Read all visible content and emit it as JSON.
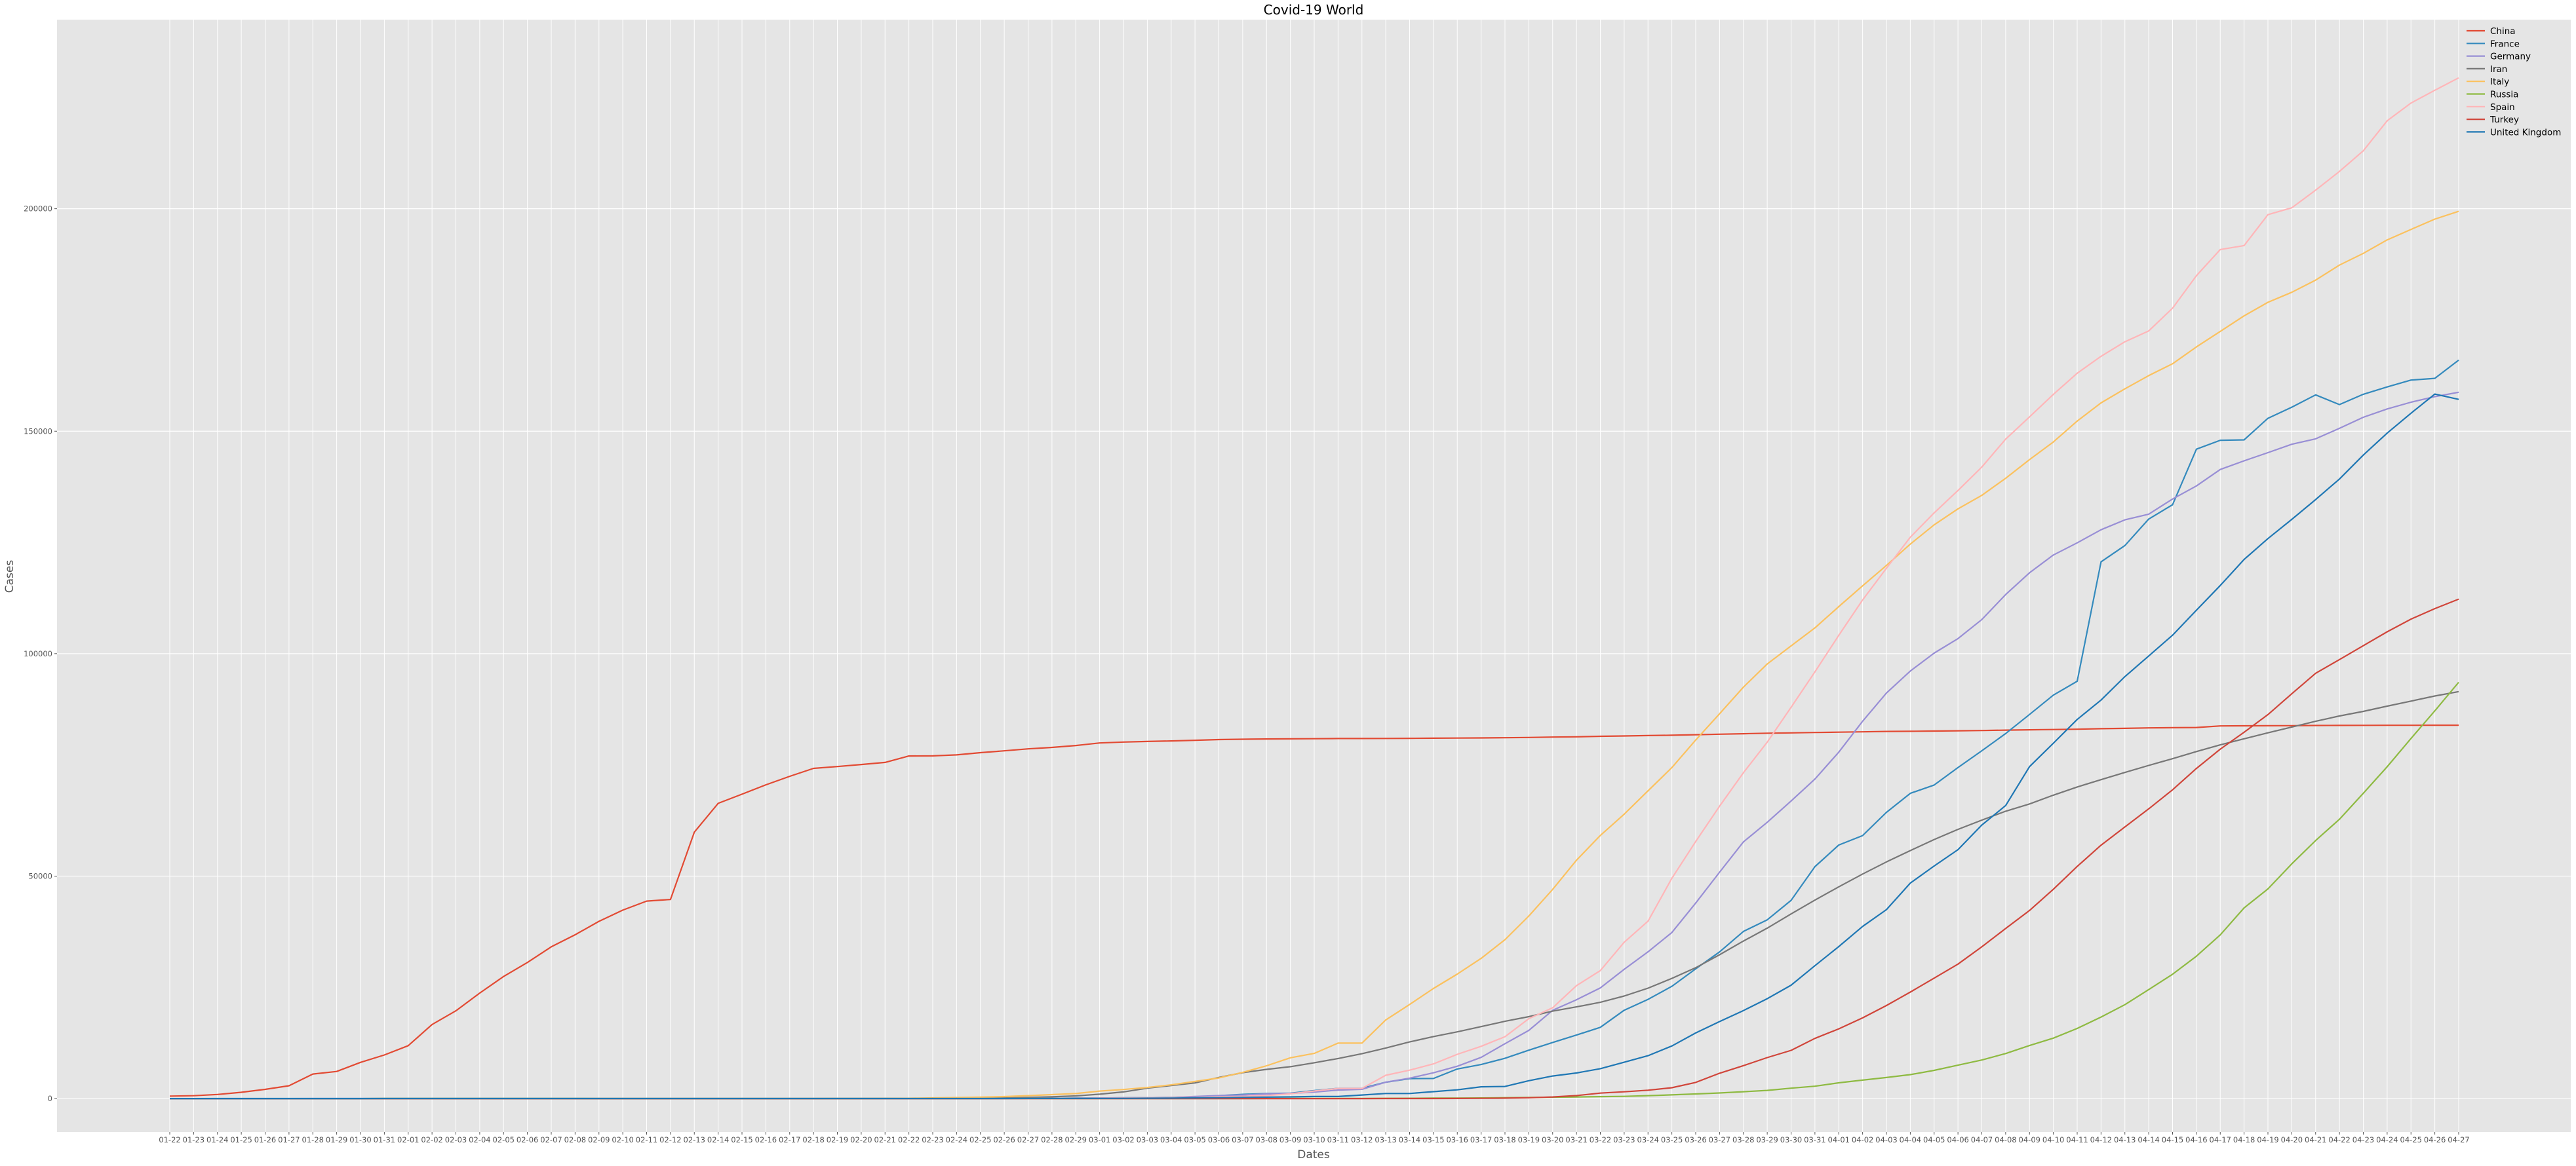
{
  "chart_data": {
    "type": "line",
    "title": "Covid-19 World",
    "xlabel": "Dates",
    "ylabel": "Cases",
    "ylim": [
      -7500,
      242500
    ],
    "yticks": [
      0,
      50000,
      100000,
      150000,
      200000
    ],
    "grid": true,
    "legend_position": "top-right",
    "x": [
      "01-22",
      "01-23",
      "01-24",
      "01-25",
      "01-26",
      "01-27",
      "01-28",
      "01-29",
      "01-30",
      "01-31",
      "02-01",
      "02-02",
      "02-03",
      "02-04",
      "02-05",
      "02-06",
      "02-07",
      "02-08",
      "02-09",
      "02-10",
      "02-11",
      "02-12",
      "02-13",
      "02-14",
      "02-15",
      "02-16",
      "02-17",
      "02-18",
      "02-19",
      "02-20",
      "02-21",
      "02-22",
      "02-23",
      "02-24",
      "02-25",
      "02-26",
      "02-27",
      "02-28",
      "02-29",
      "03-01",
      "03-02",
      "03-03",
      "03-04",
      "03-05",
      "03-06",
      "03-07",
      "03-08",
      "03-09",
      "03-10",
      "03-11",
      "03-12",
      "03-13",
      "03-14",
      "03-15",
      "03-16",
      "03-17",
      "03-18",
      "03-19",
      "03-20",
      "03-21",
      "03-22",
      "03-23",
      "03-24",
      "03-25",
      "03-26",
      "03-27",
      "03-28",
      "03-29",
      "03-30",
      "03-31",
      "04-01",
      "04-02",
      "04-03",
      "04-04",
      "04-05",
      "04-06",
      "04-07",
      "04-08",
      "04-09",
      "04-10",
      "04-11",
      "04-12",
      "04-13",
      "04-14",
      "04-15",
      "04-16",
      "04-17",
      "04-18",
      "04-19",
      "04-20",
      "04-21",
      "04-22",
      "04-23",
      "04-24",
      "04-25",
      "04-26",
      "04-27"
    ],
    "series": [
      {
        "name": "China",
        "color": "#E24A33",
        "values": [
          548,
          643,
          920,
          1406,
          2075,
          2877,
          5509,
          6087,
          8141,
          9802,
          11891,
          16630,
          19716,
          23707,
          27440,
          30587,
          34110,
          36814,
          39829,
          42354,
          44386,
          44759,
          59895,
          66358,
          68413,
          70513,
          72434,
          74211,
          74619,
          75077,
          75550,
          77001,
          77022,
          77241,
          77754,
          78166,
          78600,
          78928,
          79356,
          79932,
          80136,
          80261,
          80386,
          80537,
          80690,
          80770,
          80823,
          80860,
          80887,
          80921,
          80932,
          80945,
          80977,
          81003,
          81033,
          81058,
          81102,
          81156,
          81250,
          81305,
          81435,
          81498,
          81591,
          81661,
          81782,
          81897,
          81999,
          82122,
          82198,
          82279,
          82361,
          82432,
          82511,
          82543,
          82602,
          82665,
          82718,
          82809,
          82883,
          82941,
          83014,
          83134,
          83213,
          83306,
          83356,
          83403,
          83760,
          83787,
          83805,
          83817,
          83853,
          83868,
          83884,
          83899,
          83909,
          83912,
          83918
        ]
      },
      {
        "name": "France",
        "color": "#348ABD",
        "values": [
          0,
          0,
          2,
          3,
          3,
          3,
          4,
          5,
          5,
          5,
          6,
          6,
          6,
          6,
          6,
          6,
          6,
          11,
          11,
          11,
          11,
          11,
          11,
          11,
          12,
          12,
          12,
          12,
          12,
          12,
          12,
          12,
          12,
          12,
          14,
          18,
          38,
          57,
          100,
          130,
          191,
          204,
          288,
          380,
          656,
          957,
          1134,
          1217,
          1792,
          2289,
          2289,
          3672,
          4480,
          4513,
          6650,
          7652,
          9043,
          10871,
          12612,
          14282,
          16018,
          19856,
          22304,
          25233,
          29155,
          32964,
          37575,
          40174,
          44550,
          52128,
          56989,
          59105,
          64338,
          68605,
          70478,
          74390,
          78167,
          82048,
          86334,
          90676,
          93790,
          120633,
          124298,
          130253,
          133470,
          145960,
          147969,
          148044,
          152894,
          155393,
          158168,
          155980,
          158303,
          159952,
          161488,
          161883,
          165963
        ]
      },
      {
        "name": "Germany",
        "color": "#988ED5",
        "values": [
          0,
          0,
          0,
          0,
          0,
          1,
          4,
          4,
          4,
          5,
          8,
          10,
          12,
          12,
          12,
          12,
          13,
          13,
          14,
          14,
          16,
          16,
          16,
          16,
          16,
          16,
          16,
          16,
          16,
          16,
          16,
          16,
          16,
          16,
          17,
          27,
          46,
          48,
          79,
          130,
          159,
          196,
          262,
          482,
          670,
          799,
          1040,
          1176,
          1457,
          1908,
          2078,
          3675,
          4585,
          5795,
          7272,
          9257,
          12327,
          15320,
          19848,
          22213,
          24873,
          29056,
          32986,
          37323,
          43938,
          50871,
          57695,
          62095,
          66885,
          71808,
          77872,
          84794,
          91159,
          96092,
          100123,
          103374,
          107663,
          113296,
          118181,
          122171,
          124908,
          127854,
          130072,
          131359,
          134753,
          137698,
          141397,
          143342,
          145184,
          147065,
          148291,
          150648,
          153129,
          154999,
          156513,
          157770,
          158758
        ]
      },
      {
        "name": "Iran",
        "color": "#777777",
        "values": [
          0,
          0,
          0,
          0,
          0,
          0,
          0,
          0,
          0,
          0,
          0,
          0,
          0,
          0,
          0,
          0,
          0,
          0,
          0,
          0,
          0,
          0,
          0,
          0,
          0,
          0,
          0,
          0,
          2,
          5,
          18,
          28,
          43,
          61,
          95,
          139,
          245,
          388,
          593,
          978,
          1501,
          2336,
          2922,
          3513,
          4747,
          5823,
          6566,
          7161,
          8042,
          9000,
          10075,
          11364,
          12729,
          13938,
          14991,
          16169,
          17361,
          18407,
          19644,
          20610,
          21638,
          23049,
          24811,
          27017,
          29406,
          32332,
          35408,
          38309,
          41495,
          44605,
          47593,
          50468,
          53183,
          55743,
          58226,
          60500,
          62589,
          64586,
          66220,
          68192,
          70029,
          71686,
          73303,
          74877,
          76389,
          77995,
          79494,
          80868,
          82211,
          83505,
          84802,
          85996,
          87026,
          88194,
          89328,
          90481,
          91472
        ]
      },
      {
        "name": "Italy",
        "color": "#FBC15E",
        "values": [
          0,
          0,
          0,
          0,
          0,
          0,
          0,
          0,
          0,
          2,
          2,
          2,
          2,
          2,
          2,
          2,
          3,
          3,
          3,
          3,
          3,
          3,
          3,
          3,
          3,
          3,
          3,
          3,
          3,
          3,
          20,
          62,
          155,
          229,
          322,
          453,
          655,
          888,
          1128,
          1694,
          2036,
          2502,
          3089,
          3858,
          4636,
          5883,
          7375,
          9172,
          10149,
          12462,
          12462,
          17660,
          21157,
          24747,
          27980,
          31506,
          35713,
          41035,
          47021,
          53578,
          59138,
          63927,
          69176,
          74386,
          80589,
          86498,
          92472,
          97689,
          101739,
          105792,
          110574,
          115242,
          119827,
          124632,
          128948,
          132547,
          135586,
          139422,
          143626,
          147577,
          152271,
          156363,
          159516,
          162488,
          165155,
          168941,
          172434,
          175925,
          178972,
          181228,
          183957,
          187327,
          189973,
          192994,
          195351,
          197675,
          199414
        ]
      },
      {
        "name": "Russia",
        "color": "#8EBA42",
        "values": [
          0,
          0,
          0,
          0,
          0,
          0,
          0,
          0,
          0,
          2,
          2,
          2,
          2,
          2,
          2,
          2,
          2,
          2,
          2,
          2,
          2,
          2,
          2,
          2,
          2,
          2,
          2,
          2,
          2,
          2,
          2,
          2,
          2,
          2,
          2,
          2,
          2,
          2,
          2,
          2,
          3,
          3,
          3,
          4,
          13,
          13,
          17,
          17,
          20,
          28,
          45,
          59,
          63,
          90,
          114,
          147,
          199,
          253,
          306,
          367,
          438,
          495,
          658,
          840,
          1036,
          1264,
          1534,
          1836,
          2337,
          2777,
          3548,
          4149,
          4731,
          5389,
          6343,
          7497,
          8672,
          10131,
          11917,
          13584,
          15770,
          18328,
          21102,
          24490,
          27938,
          32008,
          36793,
          42853,
          47121,
          52763,
          57999,
          62773,
          68622,
          74588,
          80949,
          87147,
          93558
        ]
      },
      {
        "name": "Spain",
        "color": "#FFB5B8",
        "values": [
          0,
          0,
          0,
          0,
          0,
          0,
          0,
          0,
          0,
          0,
          1,
          1,
          1,
          1,
          1,
          1,
          1,
          1,
          2,
          2,
          2,
          2,
          2,
          2,
          2,
          2,
          2,
          2,
          2,
          2,
          2,
          2,
          2,
          2,
          6,
          13,
          15,
          32,
          45,
          84,
          120,
          165,
          222,
          259,
          400,
          500,
          673,
          1073,
          1695,
          2277,
          2277,
          5232,
          6391,
          7798,
          9942,
          11748,
          13910,
          17963,
          20410,
          25374,
          28768,
          35136,
          39885,
          49515,
          57786,
          65719,
          73235,
          80110,
          87956,
          95923,
          104118,
          112065,
          119199,
          126168,
          131646,
          136675,
          141942,
          148220,
          153222,
          158273,
          163027,
          166831,
          170099,
          172541,
          177644,
          184948,
          190839,
          191726,
          198674,
          200210,
          204178,
          208389,
          213024,
          219764,
          223759,
          226629,
          229422
        ]
      },
      {
        "name": "Turkey",
        "color": "#D0453A",
        "values": [
          0,
          0,
          0,
          0,
          0,
          0,
          0,
          0,
          0,
          0,
          0,
          0,
          0,
          0,
          0,
          0,
          0,
          0,
          0,
          0,
          0,
          0,
          0,
          0,
          0,
          0,
          0,
          0,
          0,
          0,
          0,
          0,
          0,
          0,
          0,
          0,
          0,
          0,
          0,
          0,
          0,
          0,
          0,
          0,
          0,
          0,
          0,
          0,
          0,
          1,
          1,
          5,
          5,
          6,
          18,
          47,
          98,
          192,
          359,
          670,
          1236,
          1529,
          1872,
          2433,
          3629,
          5698,
          7402,
          9217,
          10827,
          13531,
          15679,
          18135,
          20921,
          23934,
          27069,
          30217,
          34109,
          38226,
          42282,
          47029,
          52167,
          56956,
          61049,
          65111,
          69392,
          74193,
          78546,
          82329,
          86306,
          90980,
          95591,
          98674,
          101790,
          104912,
          107773,
          110130,
          112261
        ]
      },
      {
        "name": "United Kingdom",
        "color": "#1F77B4",
        "values": [
          0,
          0,
          0,
          0,
          0,
          0,
          0,
          0,
          0,
          2,
          2,
          2,
          2,
          2,
          2,
          2,
          3,
          3,
          3,
          8,
          8,
          9,
          9,
          9,
          9,
          9,
          9,
          9,
          9,
          9,
          9,
          9,
          9,
          13,
          13,
          15,
          20,
          23,
          36,
          40,
          51,
          86,
          116,
          164,
          207,
          274,
          322,
          384,
          459,
          459,
          802,
          1144,
          1145,
          1551,
          1960,
          2642,
          2716,
          4014,
          5067,
          5745,
          6726,
          8164,
          9640,
          11812,
          14745,
          17312,
          19780,
          22453,
          25481,
          29865,
          34173,
          38690,
          42477,
          48440,
          52279,
          55949,
          61474,
          65872,
          74605,
          79874,
          85206,
          89570,
          94845,
          99483,
          104145,
          109769,
          115314,
          121172,
          125856,
          130172,
          134638,
          139246,
          144640,
          149569,
          154037,
          158348,
          157149
        ]
      }
    ]
  }
}
